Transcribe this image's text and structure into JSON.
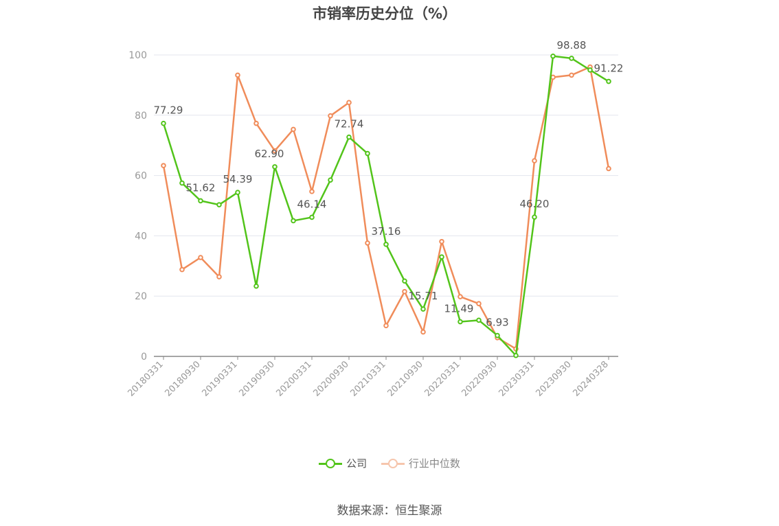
{
  "chart_data": {
    "type": "line",
    "title": "市销率历史分位（%）",
    "xlabel": "",
    "ylabel": "",
    "ylim": [
      0,
      100
    ],
    "yticks": [
      0,
      20,
      40,
      60,
      80,
      100
    ],
    "grid": true,
    "legend_position": "bottom",
    "x": [
      "20180331",
      "20180630",
      "20180930",
      "20181231",
      "20190331",
      "20190630",
      "20190930",
      "20191231",
      "20200331",
      "20200630",
      "20200930",
      "20201231",
      "20210331",
      "20210630",
      "20210930",
      "20211231",
      "20220331",
      "20220630",
      "20220930",
      "20221231",
      "20230331",
      "20230630",
      "20230930",
      "20231231",
      "20240328"
    ],
    "x_tick_labels": [
      "20180331",
      "20180930",
      "20190331",
      "20190930",
      "20200331",
      "20200930",
      "20210331",
      "20210930",
      "20220331",
      "20220930",
      "20230331",
      "20230930",
      "20240328"
    ],
    "series": [
      {
        "name": "公司",
        "color": "#52c41a",
        "values": [
          77.29,
          57.5,
          51.62,
          50.3,
          54.39,
          23.3,
          62.9,
          45.0,
          46.14,
          58.5,
          72.74,
          67.3,
          37.16,
          25.0,
          15.71,
          33.0,
          11.49,
          12.0,
          6.93,
          0.3,
          46.2,
          99.6,
          98.88,
          95.0,
          91.22
        ],
        "data_labels": {
          "0": "77.29",
          "2": "51.62",
          "4": "54.39",
          "6": "62.90",
          "8": "46.14",
          "10": "72.74",
          "12": "37.16",
          "14": "15.71",
          "16": "11.49",
          "18": "6.93",
          "20": "46.20",
          "22": "98.88",
          "24": "91.22"
        }
      },
      {
        "name": "行业中位数",
        "color": "#f08c5a",
        "values": [
          63.3,
          28.8,
          32.8,
          26.4,
          93.3,
          77.3,
          68.2,
          75.3,
          54.7,
          79.8,
          84.2,
          37.6,
          10.2,
          21.5,
          8.1,
          38.1,
          19.8,
          17.5,
          6.2,
          2.5,
          64.9,
          92.6,
          93.3,
          96.0,
          62.3
        ]
      }
    ]
  },
  "source_text": "数据来源：恒生聚源"
}
